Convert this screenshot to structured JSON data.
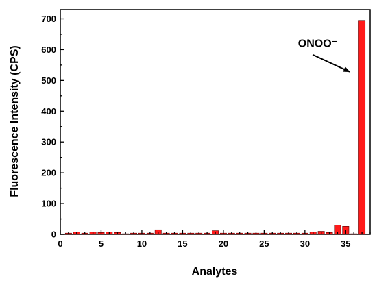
{
  "chart_data": {
    "type": "bar",
    "xlabel": "Analytes",
    "ylabel": "Fluorescence Intensity (CPS)",
    "xlim": [
      0,
      38
    ],
    "ylim": [
      0,
      730
    ],
    "x_ticks": [
      0,
      5,
      10,
      15,
      20,
      25,
      30,
      35
    ],
    "y_ticks": [
      0,
      100,
      200,
      300,
      400,
      500,
      600,
      700
    ],
    "grid": false,
    "bar_color": "#ff1a1a",
    "x": [
      1,
      2,
      3,
      4,
      5,
      6,
      7,
      8,
      9,
      10,
      11,
      12,
      13,
      14,
      15,
      16,
      17,
      18,
      19,
      20,
      21,
      22,
      23,
      24,
      25,
      26,
      27,
      28,
      29,
      30,
      31,
      32,
      33,
      34,
      35,
      36,
      37
    ],
    "values": [
      4,
      8,
      4,
      8,
      6,
      8,
      6,
      2,
      4,
      4,
      4,
      15,
      4,
      4,
      4,
      4,
      4,
      4,
      12,
      4,
      4,
      4,
      4,
      4,
      4,
      4,
      4,
      4,
      4,
      4,
      8,
      10,
      6,
      30,
      26,
      2,
      695
    ],
    "annotations": [
      {
        "text": "ONOO⁻",
        "target_x": 37,
        "target_value": 695
      }
    ]
  }
}
